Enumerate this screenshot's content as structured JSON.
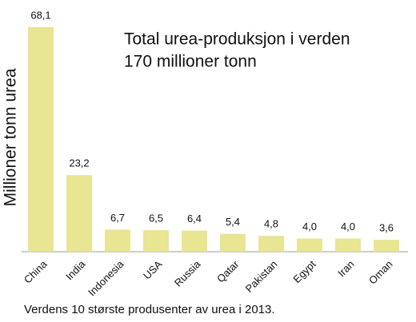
{
  "chart_data": {
    "type": "bar",
    "title": [
      "Total urea-produksjon i verden",
      "170 millioner tonn"
    ],
    "ylabel": "Millioner tonn urea",
    "caption": "Verdens 10 største produsenter av urea i 2013.",
    "categories": [
      "China",
      "India",
      "Indonesia",
      "USA",
      "Russia",
      "Qatar",
      "Pakistan",
      "Egypt",
      "Iran",
      "Oman"
    ],
    "values": [
      68.1,
      23.2,
      6.7,
      6.5,
      6.4,
      5.4,
      4.8,
      4.0,
      4.0,
      3.6
    ],
    "value_labels": [
      "68,1",
      "23,2",
      "6,7",
      "6,5",
      "6,4",
      "5,4",
      "4,8",
      "4,0",
      "4,0",
      "3,6"
    ],
    "color": "#e8e593",
    "ylim": [
      0,
      70
    ]
  }
}
